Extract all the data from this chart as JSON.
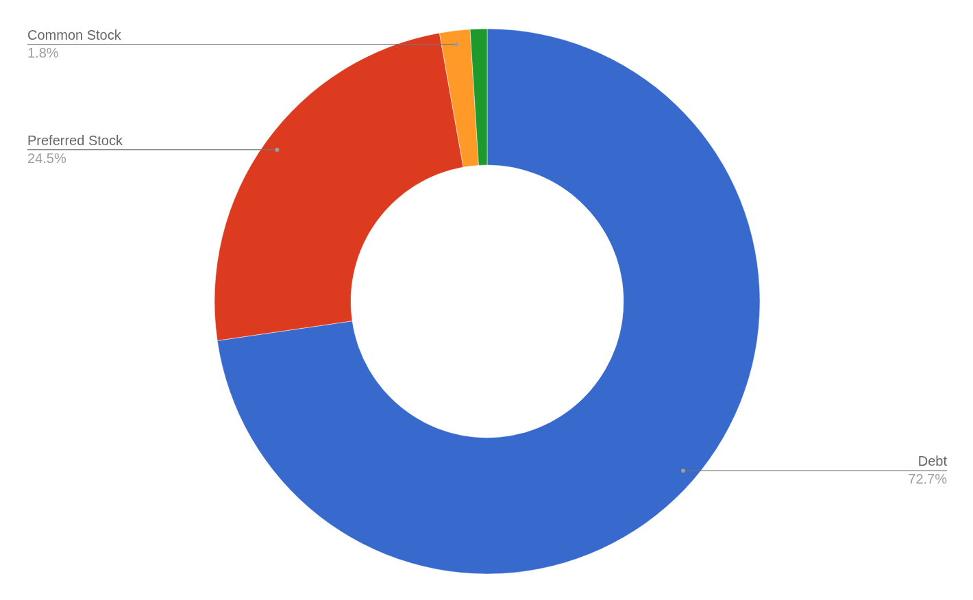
{
  "chart_data": {
    "type": "donut",
    "categories": [
      "Debt",
      "Preferred Stock",
      "Common Stock",
      null
    ],
    "values": [
      72.7,
      24.5,
      1.8,
      1.0
    ],
    "colors": [
      "#3869cc",
      "#dc3b20",
      "#ff9a28",
      "#1e9a2c"
    ],
    "value_labels": [
      "72.7%",
      "24.5%",
      "1.8%",
      null
    ]
  }
}
